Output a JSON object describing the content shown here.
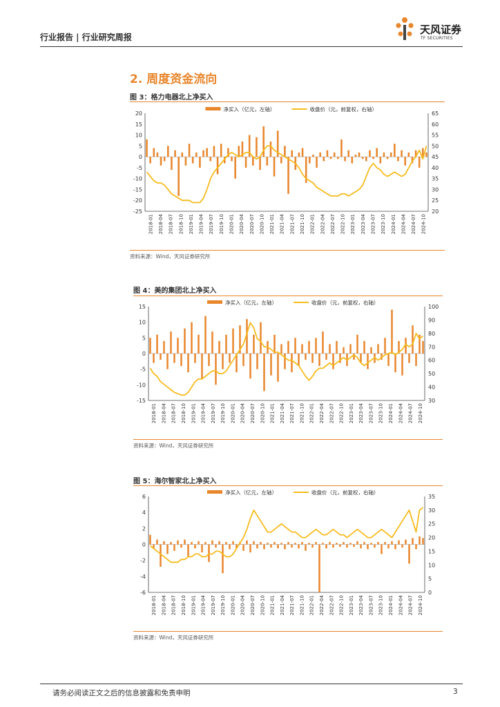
{
  "header": {
    "breadcrumb": "行业报告 | 行业研究周报",
    "logo_cn": "天风证券",
    "logo_en": "TF SECURITIES"
  },
  "section": {
    "title": "2. 周度资金流向"
  },
  "figures": [
    {
      "title": "图 3：格力电器北上净买入",
      "source": "资料来源：Wind，天风证券研究所"
    },
    {
      "title": "图 4：美的集团北上净买入",
      "source": "资料来源：Wind，天风证券研究所"
    },
    {
      "title": "图 5：海尔智家北上净买入",
      "source": "资料来源：Wind，天风证券研究所"
    }
  ],
  "footer": {
    "note": "请务必阅读正文之后的信息披露和免责申明",
    "page": "3"
  },
  "colors": {
    "accent": "#e8862c",
    "price_line": "#f6bb1c",
    "net_bar": "#e8862c"
  },
  "chart_data": [
    {
      "type": "bar+line",
      "legend": [
        "净买入（亿元，左轴）",
        "收盘价（元，前复权，右轴）"
      ],
      "legend_position": "top",
      "x_ticks": [
        "2018-01",
        "2018-04",
        "2018-07",
        "2018-10",
        "2019-01",
        "2019-04",
        "2019-07",
        "2019-10",
        "2020-01",
        "2020-04",
        "2020-07",
        "2020-10",
        "2021-01",
        "2021-04",
        "2021-07",
        "2021-10",
        "2022-01",
        "2022-04",
        "2022-07",
        "2022-10",
        "2023-01",
        "2023-04",
        "2023-07",
        "2023-10",
        "2024-01",
        "2024-04",
        "2024-07",
        "2024-10"
      ],
      "y_left": {
        "min": -25,
        "max": 20,
        "ticks": [
          20,
          15,
          10,
          5,
          0,
          -5,
          -10,
          -15,
          -20,
          -25
        ]
      },
      "y_right": {
        "min": 20,
        "max": 65,
        "ticks": [
          65,
          60,
          55,
          50,
          45,
          40,
          35,
          30,
          25,
          20
        ]
      },
      "price_series": [
        38,
        36,
        34,
        33,
        33,
        32,
        30,
        28,
        27,
        26,
        25,
        25,
        25,
        24,
        24,
        24,
        26,
        30,
        35,
        38,
        40,
        42,
        44,
        46,
        47,
        46,
        45,
        46,
        47,
        47,
        45,
        44,
        45,
        48,
        50,
        50,
        48,
        47,
        46,
        45,
        44,
        43,
        42,
        40,
        37,
        35,
        34,
        33,
        31,
        30,
        29,
        28,
        27,
        27,
        27,
        28,
        28,
        27,
        28,
        29,
        30,
        32,
        36,
        40,
        42,
        40,
        39,
        37,
        36,
        37,
        38,
        37,
        36,
        37,
        40,
        43,
        45,
        48,
        44,
        50
      ],
      "net_series": [
        8,
        -3,
        4,
        2,
        -4,
        -2,
        5,
        -6,
        3,
        -18,
        2,
        -4,
        6,
        -3,
        2,
        -5,
        3,
        4,
        -2,
        5,
        -8,
        6,
        -3,
        4,
        -2,
        -10,
        5,
        7,
        -5,
        10,
        -4,
        9,
        -6,
        14,
        -4,
        7,
        -9,
        12,
        -3,
        5,
        -17,
        3,
        -6,
        2,
        4,
        -12,
        -3,
        1,
        -5,
        2,
        -2,
        3,
        -1,
        2,
        -1,
        8,
        -2,
        3,
        -3,
        1,
        2,
        -1,
        -2,
        3,
        -1,
        4,
        -3,
        2,
        -1,
        2,
        6,
        -2,
        3,
        -4,
        2,
        -3,
        3,
        -5,
        4,
        2
      ]
    },
    {
      "type": "bar+line",
      "legend": [
        "净买入（亿元，左轴）",
        "收盘价（元，前复权，右轴）"
      ],
      "legend_position": "top",
      "x_ticks": [
        "2018-01",
        "2018-04",
        "2018-07",
        "2018-10",
        "2019-01",
        "2019-04",
        "2019-07",
        "2019-10",
        "2020-01",
        "2020-04",
        "2020-07",
        "2020-10",
        "2021-01",
        "2021-04",
        "2021-07",
        "2021-10",
        "2022-01",
        "2022-04",
        "2022-07",
        "2022-10",
        "2023-01",
        "2023-04",
        "2023-07",
        "2023-10",
        "2024-01",
        "2024-04",
        "2024-07",
        "2024-10"
      ],
      "y_left": {
        "min": -15,
        "max": 15,
        "ticks": [
          15,
          10,
          5,
          0,
          -5,
          -10,
          -15
        ]
      },
      "y_right": {
        "min": 30,
        "max": 100,
        "ticks": [
          100,
          90,
          80,
          70,
          60,
          50,
          40,
          30
        ]
      },
      "price_series": [
        54,
        50,
        48,
        44,
        42,
        40,
        38,
        36,
        35,
        34,
        34,
        36,
        40,
        44,
        46,
        46,
        48,
        50,
        52,
        52,
        50,
        50,
        52,
        56,
        60,
        64,
        68,
        72,
        80,
        88,
        84,
        76,
        74,
        70,
        70,
        68,
        66,
        66,
        64,
        62,
        60,
        60,
        58,
        56,
        52,
        48,
        45,
        48,
        52,
        54,
        54,
        56,
        58,
        56,
        58,
        60,
        62,
        60,
        62,
        64,
        62,
        58,
        56,
        58,
        60,
        62,
        60,
        62,
        64,
        65,
        66,
        64,
        66,
        68,
        72,
        70,
        72,
        80,
        76,
        78
      ],
      "net_series": [
        5,
        -3,
        6,
        -2,
        4,
        -5,
        7,
        -3,
        5,
        -4,
        8,
        -6,
        10,
        -3,
        6,
        -8,
        12,
        -4,
        7,
        -10,
        4,
        -5,
        6,
        -3,
        8,
        -6,
        9,
        -4,
        11,
        -8,
        6,
        -5,
        10,
        -12,
        4,
        -7,
        6,
        -9,
        3,
        -5,
        4,
        -6,
        5,
        -4,
        3,
        -2,
        4,
        -3,
        5,
        -4,
        7,
        -2,
        3,
        -5,
        4,
        -3,
        2,
        -4,
        3,
        -2,
        6,
        -3,
        4,
        -5,
        2,
        -3,
        3,
        -2,
        5,
        -4,
        14,
        -6,
        4,
        -7,
        5,
        -3,
        9,
        -4,
        6,
        4
      ]
    },
    {
      "type": "bar+line",
      "legend": [
        "净买入（亿元，左轴）",
        "收盘价（元，前复权，右轴）"
      ],
      "legend_position": "top",
      "x_ticks": [
        "2018-01",
        "2018-04",
        "2018-07",
        "2018-10",
        "2019-01",
        "2019-04",
        "2019-07",
        "2019-10",
        "2020-01",
        "2020-04",
        "2020-07",
        "2020-10",
        "2021-01",
        "2021-04",
        "2021-07",
        "2021-10",
        "2022-01",
        "2022-04",
        "2022-07",
        "2022-10",
        "2023-01",
        "2023-04",
        "2023-07",
        "2023-10",
        "2024-01",
        "2024-04",
        "2024-07",
        "2024-10"
      ],
      "y_left": {
        "min": -6,
        "max": 6,
        "ticks": [
          6,
          4,
          2,
          0,
          -2,
          -4,
          -6
        ]
      },
      "y_right": {
        "min": 0,
        "max": 35,
        "ticks": [
          35,
          30,
          25,
          20,
          15,
          10,
          5,
          0
        ]
      },
      "price_series": [
        17,
        16,
        15,
        14,
        13,
        12,
        11,
        11,
        11,
        12,
        12,
        13,
        13,
        14,
        14,
        13,
        13,
        14,
        14,
        15,
        15,
        14,
        13,
        13,
        14,
        16,
        18,
        20,
        23,
        27,
        30,
        28,
        26,
        24,
        22,
        22,
        23,
        24,
        25,
        24,
        23,
        22,
        22,
        21,
        20,
        20,
        21,
        22,
        23,
        22,
        21,
        21,
        22,
        23,
        22,
        21,
        21,
        20,
        21,
        22,
        23,
        22,
        21,
        20,
        20,
        21,
        22,
        23,
        22,
        21,
        20,
        22,
        24,
        26,
        28,
        30,
        26,
        22,
        30,
        31
      ],
      "net_series": [
        1.2,
        -0.5,
        0.6,
        -2.8,
        0.4,
        -1.2,
        0.3,
        -0.8,
        0.5,
        -0.4,
        0.6,
        -1.6,
        0.3,
        -0.5,
        0.4,
        -1.0,
        0.3,
        -2.2,
        0.5,
        -0.4,
        0.4,
        -3.6,
        0.3,
        -0.6,
        0.4,
        -0.5,
        0.3,
        -0.8,
        0.5,
        -1.0,
        0.4,
        -0.5,
        0.3,
        -0.6,
        0.2,
        -0.4,
        0.3,
        -0.5,
        0.2,
        -0.6,
        0.3,
        -0.4,
        0.2,
        -0.5,
        0.3,
        -0.8,
        0.2,
        -0.4,
        0.3,
        -6.0,
        0.2,
        -0.5,
        0.3,
        -0.4,
        0.2,
        -0.3,
        0.3,
        -0.4,
        0.2,
        -0.3,
        0.4,
        -0.5,
        0.3,
        -0.6,
        0.2,
        -0.4,
        0.3,
        -1.2,
        0.3,
        -0.5,
        0.4,
        -0.6,
        0.5,
        -0.4,
        0.6,
        -2.4,
        0.8,
        -0.6,
        1.0,
        0.8
      ]
    }
  ]
}
